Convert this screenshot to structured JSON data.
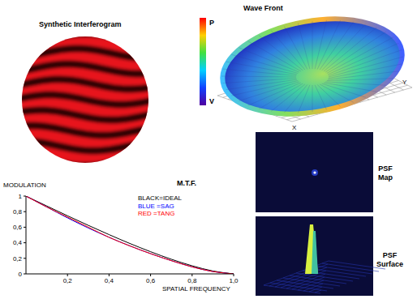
{
  "panels": {
    "interferogram": {
      "title": "Synthetic Interferogram"
    },
    "wavefront": {
      "title": "Wave Front",
      "colorbar_top": "P",
      "colorbar_bottom": "V",
      "x_axis": "X",
      "y_axis": "Y"
    },
    "psf_map": {
      "label": "PSF Map"
    },
    "psf_surface": {
      "label": "PSF Surface"
    }
  },
  "chart_data": {
    "type": "line",
    "title": "M.T.F.",
    "y_label": "MODULATION",
    "x_label": "SPATIAL FREQUENCY",
    "x": [
      0,
      0.1,
      0.2,
      0.3,
      0.4,
      0.5,
      0.6,
      0.7,
      0.8,
      0.9,
      1
    ],
    "series": [
      {
        "name": "BLACK=IDEAL",
        "color": "#000000",
        "values": [
          1,
          0.873,
          0.747,
          0.624,
          0.505,
          0.391,
          0.285,
          0.188,
          0.104,
          0.037,
          0
        ]
      },
      {
        "name": "BLUE =SAG",
        "color": "#0000ff",
        "values": [
          1,
          0.86,
          0.72,
          0.59,
          0.47,
          0.36,
          0.26,
          0.17,
          0.09,
          0.03,
          0
        ]
      },
      {
        "name": "RED =TANG",
        "color": "#ff0000",
        "values": [
          1,
          0.86,
          0.73,
          0.6,
          0.47,
          0.36,
          0.26,
          0.17,
          0.09,
          0.03,
          0
        ]
      }
    ],
    "xlim": [
      0,
      1
    ],
    "xticks": [
      {
        "value": 0.2,
        "label": "0,2"
      },
      {
        "value": 0.4,
        "label": "0,4"
      },
      {
        "value": 0.6,
        "label": "0,6"
      },
      {
        "value": 0.8,
        "label": "0,8"
      },
      {
        "value": 1,
        "label": "1,0"
      }
    ],
    "ylim": [
      0,
      1
    ],
    "yticks": [
      0,
      {
        "value": 0.2,
        "label": "0,2"
      },
      {
        "value": 0.4,
        "label": "0,4"
      },
      {
        "value": 0.6,
        "label": "0,6"
      },
      {
        "value": 0.8,
        "label": "0,8"
      },
      1
    ],
    "grid": false,
    "legend": "top"
  }
}
